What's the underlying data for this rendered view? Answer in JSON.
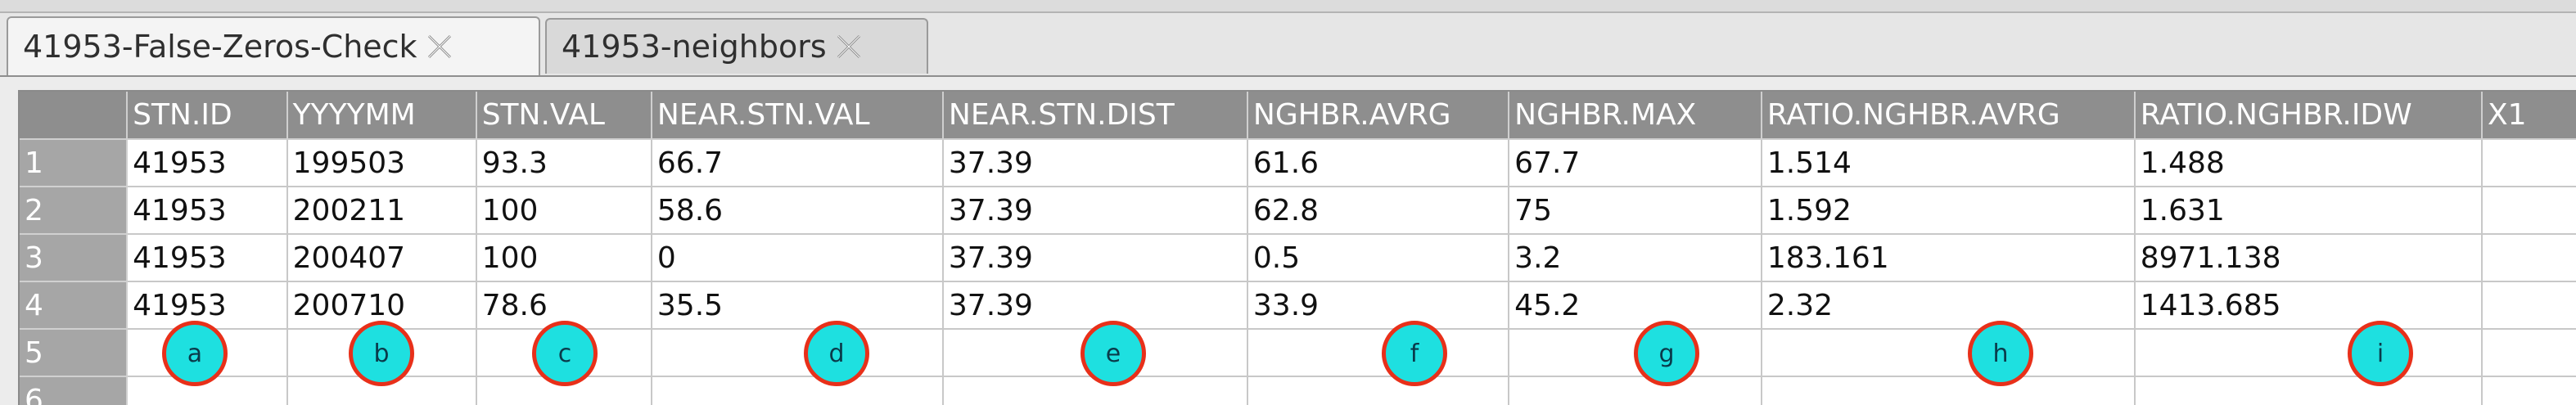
{
  "tabs": [
    {
      "label": "41953-False-Zeros-Check",
      "active": true
    },
    {
      "label": "41953-neighbors",
      "active": false
    }
  ],
  "table": {
    "columns": [
      "STN.ID",
      "YYYYMM",
      "STN.VAL",
      "NEAR.STN.VAL",
      "NEAR.STN.DIST",
      "NGHBR.AVRG",
      "NGHBR.MAX",
      "RATIO.NGHBR.AVRG",
      "RATIO.NGHBR.IDW",
      "X1"
    ],
    "row_numbers": [
      "1",
      "2",
      "3",
      "4",
      "5",
      "6"
    ],
    "rows": [
      [
        "41953",
        "199503",
        "93.3",
        "66.7",
        "37.39",
        "61.6",
        "67.7",
        "1.514",
        "1.488",
        ""
      ],
      [
        "41953",
        "200211",
        "100",
        "58.6",
        "37.39",
        "62.8",
        "75",
        "1.592",
        "1.631",
        ""
      ],
      [
        "41953",
        "200407",
        "100",
        "0",
        "37.39",
        "0.5",
        "3.2",
        "183.161",
        "8971.138",
        ""
      ],
      [
        "41953",
        "200710",
        "78.6",
        "35.5",
        "37.39",
        "33.9",
        "45.2",
        "2.32",
        "1413.685",
        ""
      ],
      [
        "",
        "",
        "",
        "",
        "",
        "",
        "",
        "",
        "",
        ""
      ],
      [
        "",
        "",
        "",
        "",
        "",
        "",
        "",
        "",
        "",
        ""
      ]
    ]
  },
  "markers": [
    "a",
    "b",
    "c",
    "d",
    "e",
    "f",
    "g",
    "h",
    "i"
  ],
  "colors": {
    "marker_fill": "#1ee0e0",
    "marker_border": "#e8301a",
    "header_bg": "#8e8e8e"
  }
}
